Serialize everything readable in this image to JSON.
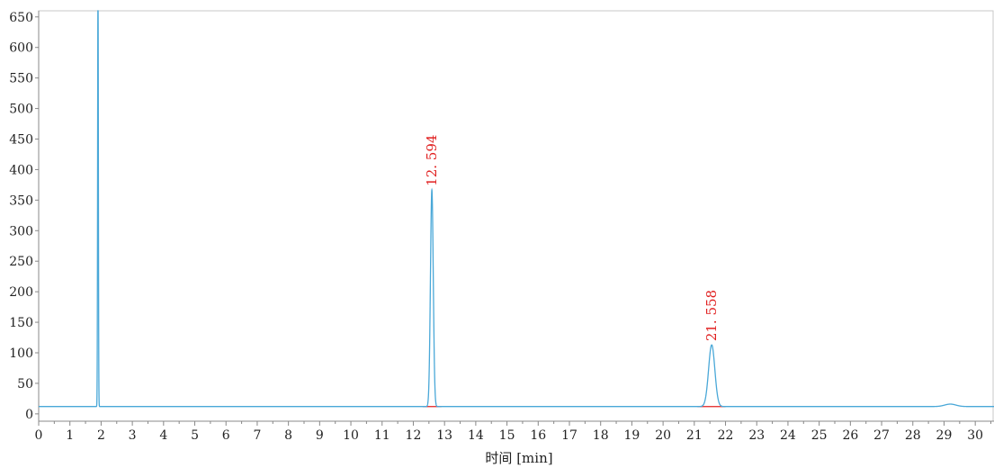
{
  "chart_data": {
    "type": "line",
    "xlabel": "时间 [min]",
    "xlim": [
      0,
      30.6
    ],
    "ylim": [
      -12,
      660
    ],
    "x_ticks": [
      0,
      1,
      2,
      3,
      4,
      5,
      6,
      7,
      8,
      9,
      10,
      11,
      12,
      13,
      14,
      15,
      16,
      17,
      18,
      19,
      20,
      21,
      22,
      23,
      24,
      25,
      26,
      27,
      28,
      29,
      30
    ],
    "y_ticks": [
      0,
      50,
      100,
      150,
      200,
      250,
      300,
      350,
      400,
      450,
      500,
      550,
      600,
      650
    ],
    "grid": false,
    "baseline": 12,
    "series": [
      {
        "color": "#4aa8d8",
        "peaks": [
          {
            "rt": 1.9,
            "height": 720,
            "sigma": 0.012
          },
          {
            "rt": 12.594,
            "height": 367,
            "sigma": 0.045
          },
          {
            "rt": 21.558,
            "height": 113,
            "sigma": 0.1
          },
          {
            "rt": 29.2,
            "height": 16,
            "sigma": 0.18
          }
        ]
      }
    ],
    "annotations": [
      {
        "text": "12. 594",
        "x": 12.594,
        "y": 367
      },
      {
        "text": "21. 558",
        "x": 21.558,
        "y": 113
      }
    ],
    "integration_marks": [
      {
        "start": 12.3,
        "end": 12.9
      },
      {
        "start": 21.1,
        "end": 22.0
      }
    ],
    "colors": {
      "trace": "#4aa8d8",
      "annotation": "#e02020",
      "integration": "#e02020",
      "axis": "#888888"
    }
  }
}
